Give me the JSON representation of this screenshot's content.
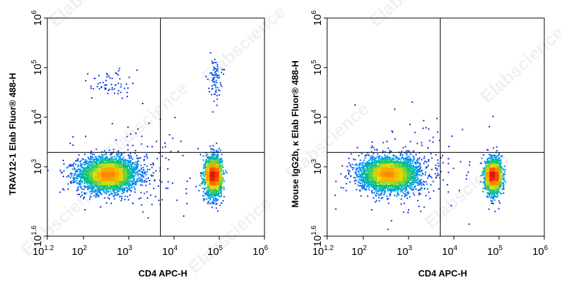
{
  "watermark_text": "Elabscience",
  "chart_data": [
    {
      "type": "scatter",
      "subtype": "flow-cytometry-density-plot",
      "xlabel": "CD4 APC-H",
      "ylabel": "TRAV12-1 Elab Fluor® 488-H",
      "xscale": "log",
      "yscale": "log",
      "xlim": [
        15.85,
        1000000
      ],
      "ylim": [
        39.8,
        1000000
      ],
      "x_ticks": [
        {
          "base": "10",
          "exp": "1.2",
          "value": 15.85
        },
        {
          "base": "10",
          "exp": "2",
          "value": 100
        },
        {
          "base": "10",
          "exp": "3",
          "value": 1000
        },
        {
          "base": "10",
          "exp": "4",
          "value": 10000
        },
        {
          "base": "10",
          "exp": "5",
          "value": 100000
        },
        {
          "base": "10",
          "exp": "6",
          "value": 1000000
        }
      ],
      "y_ticks": [
        {
          "base": "10",
          "exp": "1.6",
          "value": 39.8
        },
        {
          "base": "10",
          "exp": "3",
          "value": 1000
        },
        {
          "base": "10",
          "exp": "4",
          "value": 10000
        },
        {
          "base": "10",
          "exp": "5",
          "value": 100000
        },
        {
          "base": "10",
          "exp": "6",
          "value": 1000000
        }
      ],
      "gate": {
        "x": 5000,
        "y": 1950
      },
      "populations": [
        {
          "cx": 350,
          "cy": 700,
          "sx": 0.33,
          "sy": 0.17,
          "n": 3200
        },
        {
          "cx": 75000,
          "cy": 650,
          "sx": 0.09,
          "sy": 0.2,
          "n": 1900
        },
        {
          "cx": 380,
          "cy": 45000,
          "sx": 0.22,
          "sy": 0.16,
          "n": 60
        },
        {
          "cx": 80000,
          "cy": 65000,
          "sx": 0.07,
          "sy": 0.2,
          "n": 80
        },
        {
          "cx": 1500,
          "cy": 900,
          "sx": 0.7,
          "sy": 0.45,
          "n": 150
        }
      ]
    },
    {
      "type": "scatter",
      "subtype": "flow-cytometry-density-plot",
      "xlabel": "CD4 APC-H",
      "ylabel": "Mouse IgG2b, κ Elab Fluor® 488-H",
      "xscale": "log",
      "yscale": "log",
      "xlim": [
        15.85,
        1000000
      ],
      "ylim": [
        39.8,
        1000000
      ],
      "x_ticks": [
        {
          "base": "10",
          "exp": "1.2",
          "value": 15.85
        },
        {
          "base": "10",
          "exp": "2",
          "value": 100
        },
        {
          "base": "10",
          "exp": "3",
          "value": 1000
        },
        {
          "base": "10",
          "exp": "4",
          "value": 10000
        },
        {
          "base": "10",
          "exp": "5",
          "value": 100000
        },
        {
          "base": "10",
          "exp": "6",
          "value": 1000000
        }
      ],
      "y_ticks": [
        {
          "base": "10",
          "exp": "1.6",
          "value": 39.8
        },
        {
          "base": "10",
          "exp": "3",
          "value": 1000
        },
        {
          "base": "10",
          "exp": "4",
          "value": 10000
        },
        {
          "base": "10",
          "exp": "5",
          "value": 100000
        },
        {
          "base": "10",
          "exp": "6",
          "value": 1000000
        }
      ],
      "gate": {
        "x": 5000,
        "y": 1950
      },
      "populations": [
        {
          "cx": 380,
          "cy": 700,
          "sx": 0.33,
          "sy": 0.17,
          "n": 3200
        },
        {
          "cx": 75000,
          "cy": 650,
          "sx": 0.09,
          "sy": 0.18,
          "n": 1700
        },
        {
          "cx": 1500,
          "cy": 900,
          "sx": 0.7,
          "sy": 0.45,
          "n": 150
        }
      ]
    }
  ]
}
